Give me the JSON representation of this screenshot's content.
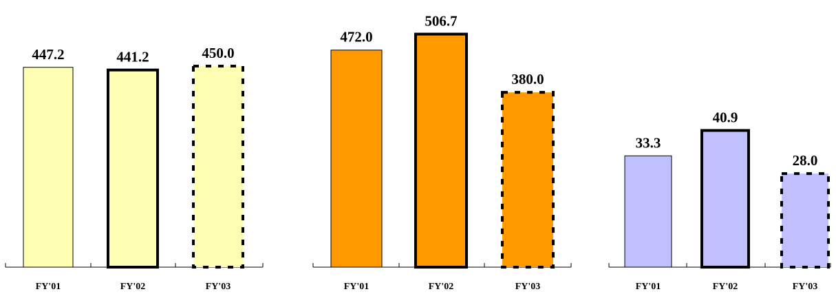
{
  "chart_data": [
    {
      "type": "bar",
      "categories": [
        "FY'01",
        "FY'02",
        "FY'03"
      ],
      "values": [
        447.2,
        441.2,
        450.0
      ],
      "labels": [
        "447.2",
        "441.2",
        "450.0"
      ],
      "ylim": [
        0,
        490
      ],
      "color": "#ffffb3",
      "bar_styles": [
        "thin",
        "bold",
        "dashed"
      ]
    },
    {
      "type": "bar",
      "categories": [
        "FY'01",
        "FY'02",
        "FY'03"
      ],
      "values": [
        472.0,
        506.7,
        380.0
      ],
      "labels": [
        "472.0",
        "506.7",
        "380.0"
      ],
      "ylim": [
        0,
        524
      ],
      "color": "#ff9900",
      "bar_styles": [
        "thin",
        "bold",
        "dashed"
      ]
    },
    {
      "type": "bar",
      "categories": [
        "FY'01",
        "FY'02",
        "FY'03"
      ],
      "values": [
        33.3,
        40.9,
        28.0
      ],
      "labels": [
        "33.3",
        "40.9",
        "28.0"
      ],
      "ylim": [
        0,
        48
      ],
      "color": "#c0c0ff",
      "bar_styles": [
        "thin",
        "bold",
        "dashed"
      ]
    }
  ]
}
